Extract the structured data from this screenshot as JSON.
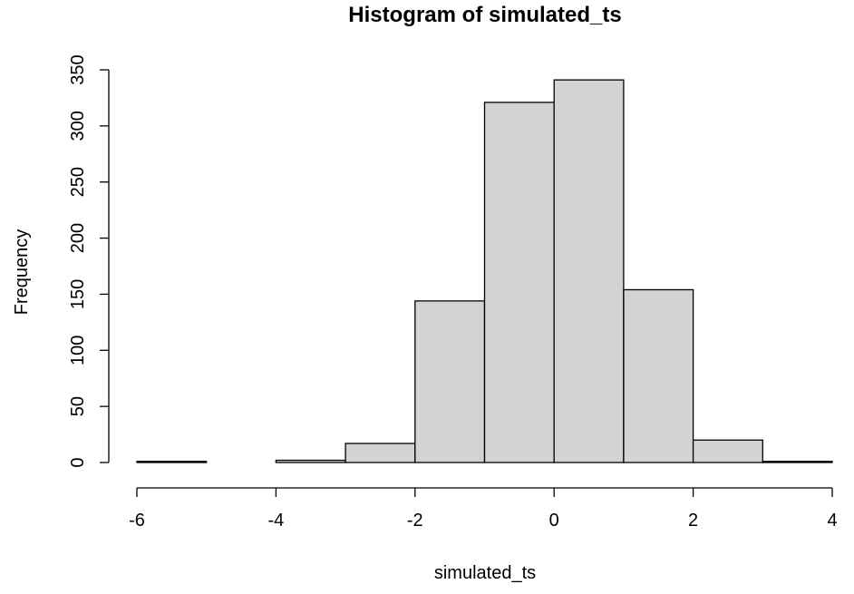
{
  "chart_data": {
    "type": "bar",
    "title": "Histogram of simulated_ts",
    "xlabel": "simulated_ts",
    "ylabel": "Frequency",
    "bins": [
      {
        "x0": -6,
        "x1": -5,
        "count": 1
      },
      {
        "x0": -5,
        "x1": -4,
        "count": 0
      },
      {
        "x0": -4,
        "x1": -3,
        "count": 2
      },
      {
        "x0": -3,
        "x1": -2,
        "count": 17
      },
      {
        "x0": -2,
        "x1": -1,
        "count": 144
      },
      {
        "x0": -1,
        "x1": 0,
        "count": 321
      },
      {
        "x0": 0,
        "x1": 1,
        "count": 341
      },
      {
        "x0": 1,
        "x1": 2,
        "count": 154
      },
      {
        "x0": 2,
        "x1": 3,
        "count": 20
      },
      {
        "x0": 3,
        "x1": 4,
        "count": 1
      }
    ],
    "xlim": [
      -6,
      4
    ],
    "ylim": [
      0,
      350
    ],
    "x_ticks": [
      -6,
      -4,
      -2,
      0,
      2,
      4
    ],
    "y_ticks": [
      0,
      50,
      100,
      150,
      200,
      250,
      300,
      350
    ],
    "grid": false,
    "bar_fill": "#d3d3d3",
    "bar_stroke": "#000000"
  }
}
